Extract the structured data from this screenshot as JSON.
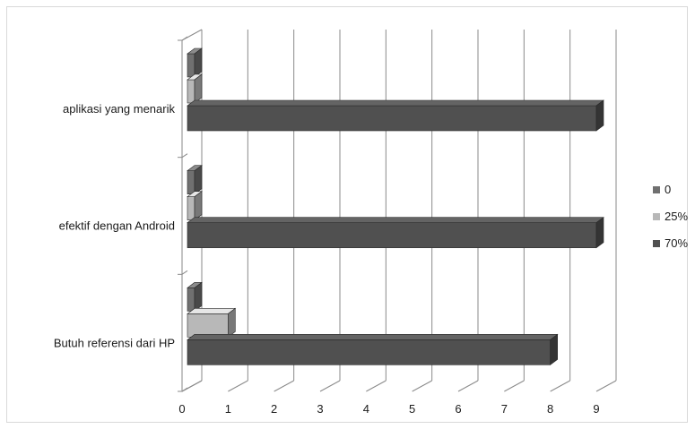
{
  "chart_data": {
    "type": "bar",
    "orientation": "horizontal",
    "style": "3d-clustered",
    "title": "",
    "xlabel": "",
    "ylabel": "",
    "categories": [
      "aplikasi yang menarik",
      "efektif dengan Android",
      "Butuh referensi dari HP"
    ],
    "series": [
      {
        "name": "0",
        "values": [
          0,
          0,
          0
        ],
        "color": "#707070"
      },
      {
        "name": "25%",
        "values": [
          0,
          0,
          1
        ],
        "color": "#b8b8b8"
      },
      {
        "name": "70%",
        "values": [
          9,
          9,
          8
        ],
        "color": "#505050"
      }
    ],
    "xlim": [
      0,
      9
    ],
    "xticks": [
      "0",
      "1",
      "2",
      "3",
      "4",
      "5",
      "6",
      "7",
      "8",
      "9"
    ],
    "grid": "vertical",
    "legend": "right"
  }
}
